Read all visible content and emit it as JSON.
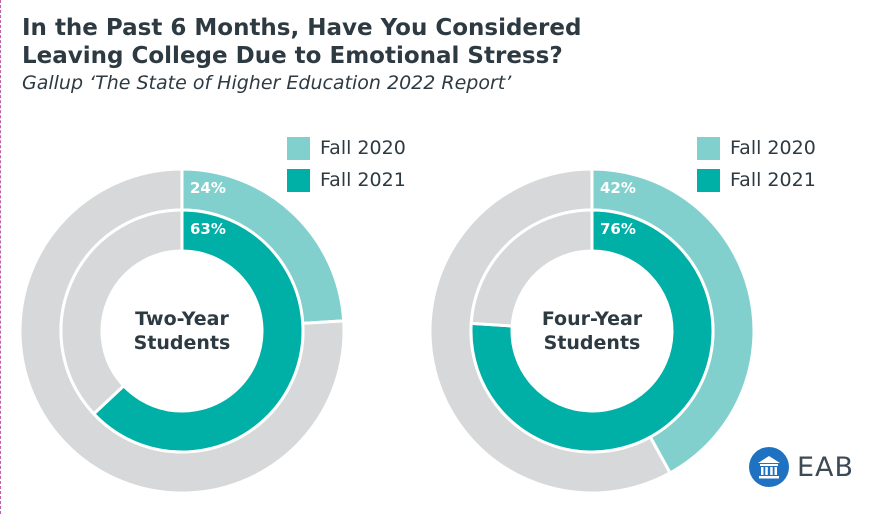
{
  "title_line1": "In the Past 6 Months, Have You Considered",
  "title_line2": "Leaving College Due to Emotional Stress?",
  "subtitle": "Gallup ‘The State of Higher Education 2022 Report’",
  "colors": {
    "fall_2020": "#82d0cd",
    "fall_2021": "#00afa6",
    "remainder": "#d6d8d9",
    "logo_blue": "#1f72c2"
  },
  "logo": {
    "text": "EAB",
    "icon": "institution-columns-icon"
  },
  "chart_data": [
    {
      "type": "donut",
      "center_label": [
        "Two-Year",
        "Students"
      ],
      "legend": [
        "Fall 2020",
        "Fall 2021"
      ],
      "series": [
        {
          "name": "Fall 2020",
          "ring": "outer",
          "value": 24,
          "label": "24%"
        },
        {
          "name": "Fall 2021",
          "ring": "inner",
          "value": 63,
          "label": "63%"
        }
      ]
    },
    {
      "type": "donut",
      "center_label": [
        "Four-Year",
        "Students"
      ],
      "legend": [
        "Fall 2020",
        "Fall 2021"
      ],
      "series": [
        {
          "name": "Fall 2020",
          "ring": "outer",
          "value": 42,
          "label": "42%"
        },
        {
          "name": "Fall 2021",
          "ring": "inner",
          "value": 76,
          "label": "76%"
        }
      ]
    }
  ]
}
